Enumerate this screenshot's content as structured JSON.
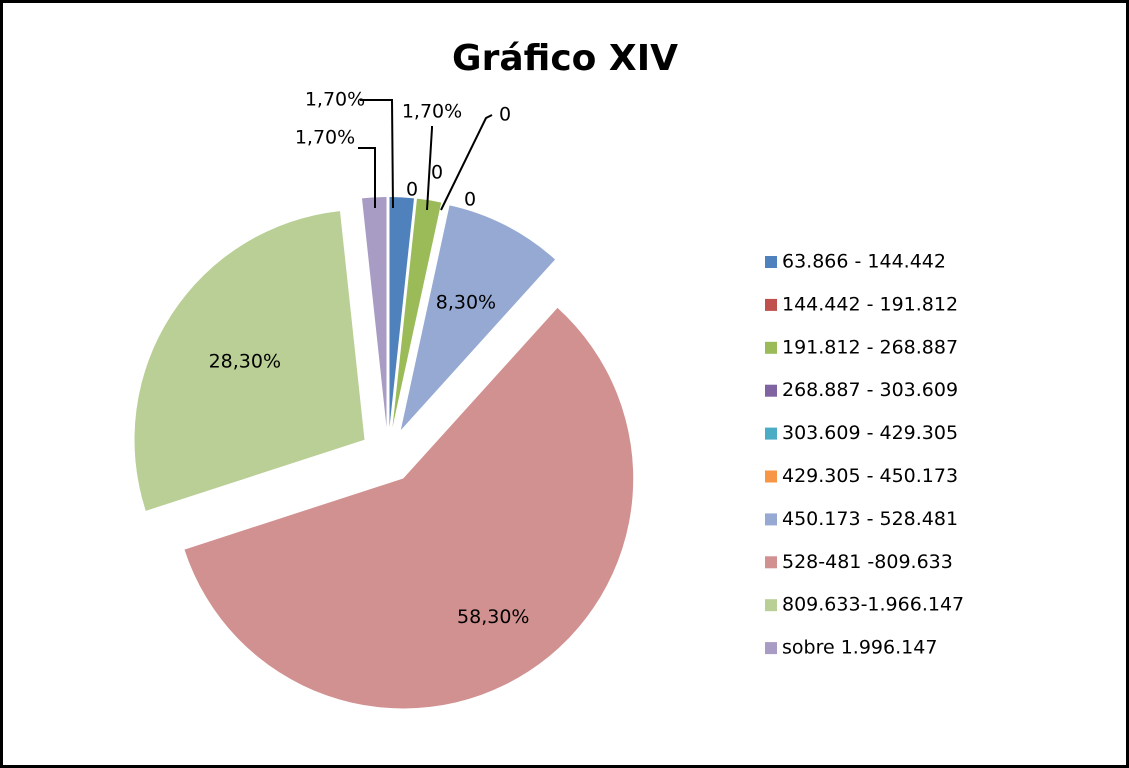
{
  "chart_data": {
    "type": "pie",
    "title": "Gráfico XIV",
    "categories": [
      "63.866 - 144.442",
      "144.442 - 191.812",
      "191.812 - 268.887",
      "268.887 - 303.609",
      "303.609 - 429.305",
      "429.305 - 450.173",
      "450.173 - 528.481",
      "528-481 -809.633",
      "809.633-1.966.147",
      "sobre 1.996.147"
    ],
    "values": [
      1.7,
      0,
      1.7,
      0,
      0,
      0,
      8.3,
      58.3,
      28.3,
      1.7
    ],
    "value_labels": [
      "1,70%",
      "0",
      "1,70%",
      "0",
      "0",
      "0",
      "8,30%",
      "58,30%",
      "28,30%",
      "1,70%"
    ],
    "colors": [
      "#4f81bd",
      "#c0504d",
      "#9bbb59",
      "#8064a2",
      "#4bacc6",
      "#f79646",
      "#95a9d3",
      "#d19190",
      "#b9cf95",
      "#a99cc4"
    ],
    "legend": "right"
  }
}
